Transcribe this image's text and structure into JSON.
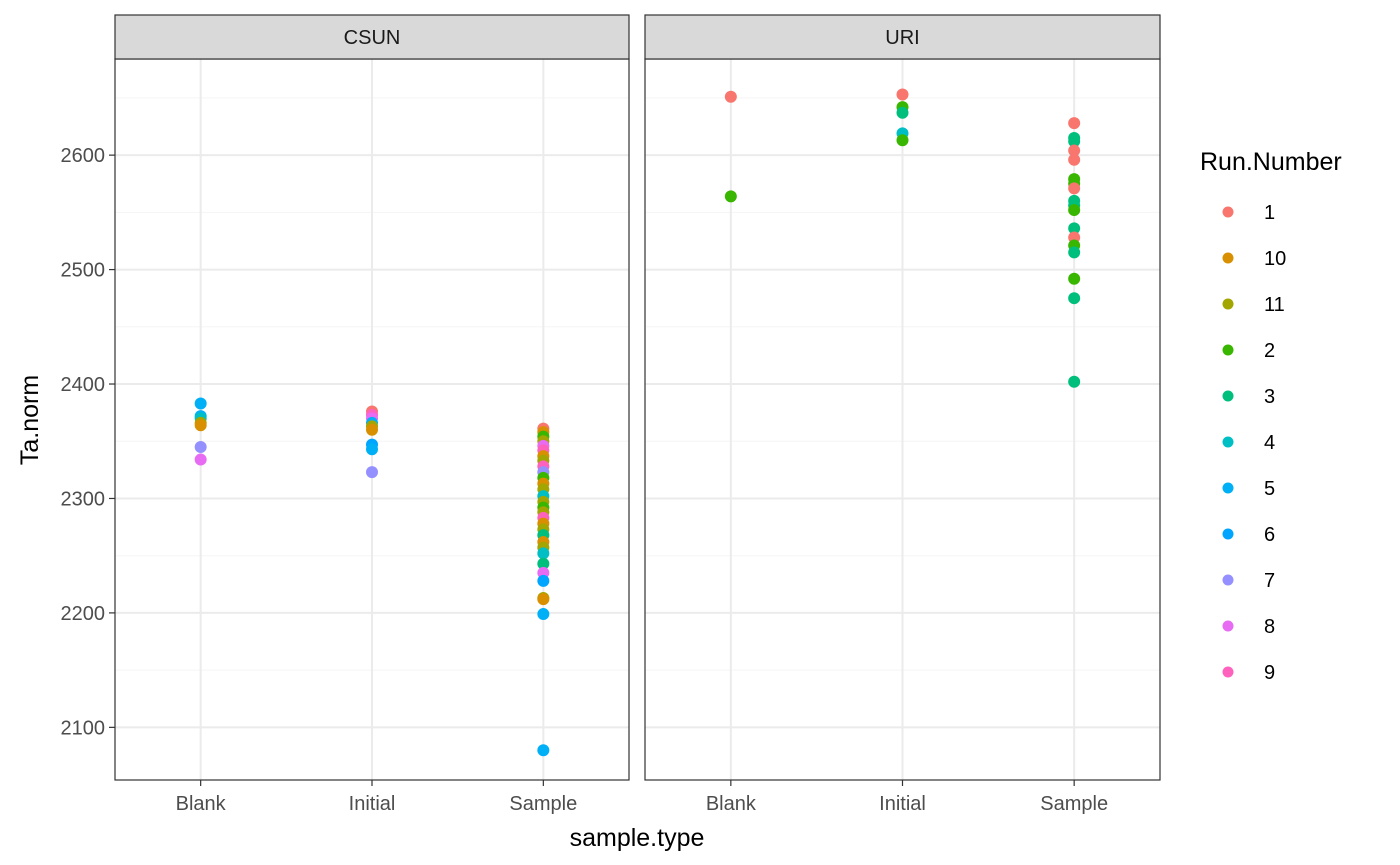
{
  "chart_data": {
    "type": "scatter",
    "facet_variable": "site",
    "panels": [
      {
        "strip": "CSUN",
        "points": [
          {
            "x": "Blank",
            "y": 2383,
            "run": "5"
          },
          {
            "x": "Blank",
            "y": 2372,
            "run": "5"
          },
          {
            "x": "Blank",
            "y": 2370,
            "run": "4"
          },
          {
            "x": "Blank",
            "y": 2366,
            "run": "11"
          },
          {
            "x": "Blank",
            "y": 2364,
            "run": "10"
          },
          {
            "x": "Blank",
            "y": 2345,
            "run": "7"
          },
          {
            "x": "Blank",
            "y": 2334,
            "run": "8"
          },
          {
            "x": "Initial",
            "y": 2376,
            "run": "1"
          },
          {
            "x": "Initial",
            "y": 2373,
            "run": "9"
          },
          {
            "x": "Initial",
            "y": 2370,
            "run": "8"
          },
          {
            "x": "Initial",
            "y": 2366,
            "run": "5"
          },
          {
            "x": "Initial",
            "y": 2363,
            "run": "11"
          },
          {
            "x": "Initial",
            "y": 2360,
            "run": "10"
          },
          {
            "x": "Initial",
            "y": 2347,
            "run": "6"
          },
          {
            "x": "Initial",
            "y": 2343,
            "run": "5"
          },
          {
            "x": "Initial",
            "y": 2323,
            "run": "7"
          },
          {
            "x": "Sample",
            "y": 2361,
            "run": "1"
          },
          {
            "x": "Sample",
            "y": 2358,
            "run": "10"
          },
          {
            "x": "Sample",
            "y": 2354,
            "run": "2"
          },
          {
            "x": "Sample",
            "y": 2350,
            "run": "11"
          },
          {
            "x": "Sample",
            "y": 2346,
            "run": "8"
          },
          {
            "x": "Sample",
            "y": 2342,
            "run": "9"
          },
          {
            "x": "Sample",
            "y": 2337,
            "run": "10"
          },
          {
            "x": "Sample",
            "y": 2333,
            "run": "11"
          },
          {
            "x": "Sample",
            "y": 2328,
            "run": "9"
          },
          {
            "x": "Sample",
            "y": 2323,
            "run": "7"
          },
          {
            "x": "Sample",
            "y": 2318,
            "run": "2"
          },
          {
            "x": "Sample",
            "y": 2313,
            "run": "10"
          },
          {
            "x": "Sample",
            "y": 2308,
            "run": "11"
          },
          {
            "x": "Sample",
            "y": 2302,
            "run": "4"
          },
          {
            "x": "Sample",
            "y": 2297,
            "run": "11"
          },
          {
            "x": "Sample",
            "y": 2292,
            "run": "2"
          },
          {
            "x": "Sample",
            "y": 2288,
            "run": "11"
          },
          {
            "x": "Sample",
            "y": 2283,
            "run": "9"
          },
          {
            "x": "Sample",
            "y": 2278,
            "run": "10"
          },
          {
            "x": "Sample",
            "y": 2273,
            "run": "11"
          },
          {
            "x": "Sample",
            "y": 2268,
            "run": "3"
          },
          {
            "x": "Sample",
            "y": 2262,
            "run": "10"
          },
          {
            "x": "Sample",
            "y": 2257,
            "run": "11"
          },
          {
            "x": "Sample",
            "y": 2252,
            "run": "4"
          },
          {
            "x": "Sample",
            "y": 2243,
            "run": "3"
          },
          {
            "x": "Sample",
            "y": 2235,
            "run": "8"
          },
          {
            "x": "Sample",
            "y": 2228,
            "run": "6"
          },
          {
            "x": "Sample",
            "y": 2213,
            "run": "11"
          },
          {
            "x": "Sample",
            "y": 2212,
            "run": "10"
          },
          {
            "x": "Sample",
            "y": 2199,
            "run": "5"
          },
          {
            "x": "Sample",
            "y": 2080,
            "run": "5"
          }
        ]
      },
      {
        "strip": "URI",
        "points": [
          {
            "x": "Blank",
            "y": 2651,
            "run": "1"
          },
          {
            "x": "Blank",
            "y": 2564,
            "run": "2"
          },
          {
            "x": "Initial",
            "y": 2653,
            "run": "1"
          },
          {
            "x": "Initial",
            "y": 2642,
            "run": "2"
          },
          {
            "x": "Initial",
            "y": 2637,
            "run": "3"
          },
          {
            "x": "Initial",
            "y": 2619,
            "run": "4"
          },
          {
            "x": "Initial",
            "y": 2613,
            "run": "2"
          },
          {
            "x": "Sample",
            "y": 2628,
            "run": "1"
          },
          {
            "x": "Sample",
            "y": 2615,
            "run": "3"
          },
          {
            "x": "Sample",
            "y": 2612,
            "run": "3"
          },
          {
            "x": "Sample",
            "y": 2604,
            "run": "1"
          },
          {
            "x": "Sample",
            "y": 2596,
            "run": "1"
          },
          {
            "x": "Sample",
            "y": 2579,
            "run": "2"
          },
          {
            "x": "Sample",
            "y": 2575,
            "run": "2"
          },
          {
            "x": "Sample",
            "y": 2571,
            "run": "1"
          },
          {
            "x": "Sample",
            "y": 2560,
            "run": "3"
          },
          {
            "x": "Sample",
            "y": 2556,
            "run": "3"
          },
          {
            "x": "Sample",
            "y": 2552,
            "run": "2"
          },
          {
            "x": "Sample",
            "y": 2536,
            "run": "3"
          },
          {
            "x": "Sample",
            "y": 2528,
            "run": "1"
          },
          {
            "x": "Sample",
            "y": 2521,
            "run": "2"
          },
          {
            "x": "Sample",
            "y": 2515,
            "run": "3"
          },
          {
            "x": "Sample",
            "y": 2492,
            "run": "2"
          },
          {
            "x": "Sample",
            "y": 2475,
            "run": "3"
          },
          {
            "x": "Sample",
            "y": 2402,
            "run": "3"
          }
        ]
      }
    ],
    "categories": [
      "Blank",
      "Initial",
      "Sample"
    ],
    "xlabel": "sample.type",
    "ylabel": "Ta.norm",
    "ylim": [
      2054,
      2684
    ],
    "yticks": [
      "2100",
      "2200",
      "2300",
      "2400",
      "2500",
      "2600"
    ],
    "grid": true,
    "legend": {
      "title": "Run.Number",
      "placement": "right",
      "items": [
        {
          "label": "1",
          "color": "#F8766D"
        },
        {
          "label": "10",
          "color": "#D89000"
        },
        {
          "label": "11",
          "color": "#A3A500"
        },
        {
          "label": "2",
          "color": "#39B600"
        },
        {
          "label": "3",
          "color": "#00BF7D"
        },
        {
          "label": "4",
          "color": "#00BFC4"
        },
        {
          "label": "5",
          "color": "#00B0F6"
        },
        {
          "label": "6",
          "color": "#00A5FF"
        },
        {
          "label": "7",
          "color": "#9590FF"
        },
        {
          "label": "8",
          "color": "#E76BF3"
        },
        {
          "label": "9",
          "color": "#FF62BC"
        }
      ]
    }
  },
  "colors": {
    "panel_border": "#333333",
    "strip_fill": "#D9D9D9",
    "grid_major": "#EBEBEB",
    "grid_minor": "#F5F5F5"
  }
}
